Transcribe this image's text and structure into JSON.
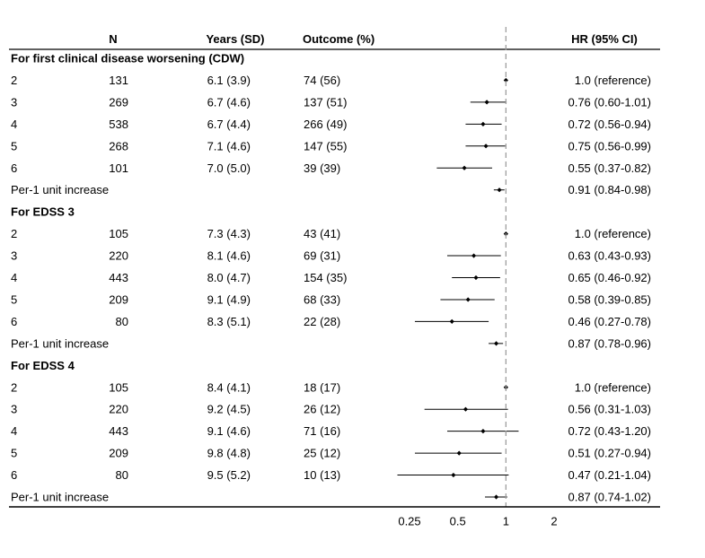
{
  "chart_data": {
    "type": "forest",
    "columns": {
      "group": "",
      "n": "N",
      "years": "Years (SD)",
      "outcome": "Outcome (%)",
      "hr": "HR (95% CI)"
    },
    "x_scale": "log",
    "xlim": [
      0.25,
      2
    ],
    "reference_line": 1,
    "x_ticks": [
      {
        "value": 0.25,
        "label": "0.25"
      },
      {
        "value": 0.5,
        "label": "0.5"
      },
      {
        "value": 1,
        "label": "1"
      },
      {
        "value": 2,
        "label": "2"
      }
    ],
    "sections": [
      {
        "title": "For first clinical disease worsening (CDW)",
        "rows": [
          {
            "label": "2",
            "n": "131",
            "years": "6.1 (3.9)",
            "outcome": "74 (56)",
            "hr": 1.0,
            "lo": null,
            "hi": null,
            "hr_text": "1.0 (reference)"
          },
          {
            "label": "3",
            "n": "269",
            "years": "6.7 (4.6)",
            "outcome": "137 (51)",
            "hr": 0.76,
            "lo": 0.6,
            "hi": 1.01,
            "hr_text": "0.76 (0.60-1.01)"
          },
          {
            "label": "4",
            "n": "538",
            "years": "6.7 (4.4)",
            "outcome": "266 (49)",
            "hr": 0.72,
            "lo": 0.56,
            "hi": 0.94,
            "hr_text": "0.72 (0.56-0.94)"
          },
          {
            "label": "5",
            "n": "268",
            "years": "7.1 (4.6)",
            "outcome": "147 (55)",
            "hr": 0.75,
            "lo": 0.56,
            "hi": 0.99,
            "hr_text": "0.75 (0.56-0.99)"
          },
          {
            "label": "6",
            "n": "101",
            "years": "7.0 (5.0)",
            "outcome": "39 (39)",
            "hr": 0.55,
            "lo": 0.37,
            "hi": 0.82,
            "hr_text": "0.55 (0.37-0.82)"
          },
          {
            "label": "Per-1 unit increase",
            "n": "",
            "years": "",
            "outcome": "",
            "hr": 0.91,
            "lo": 0.84,
            "hi": 0.98,
            "hr_text": "0.91 (0.84-0.98)"
          }
        ]
      },
      {
        "title": "For EDSS 3",
        "rows": [
          {
            "label": "2",
            "n": "105",
            "years": "7.3 (4.3)",
            "outcome": "43 (41)",
            "hr": 1.0,
            "lo": null,
            "hi": null,
            "hr_text": "1.0 (reference)"
          },
          {
            "label": "3",
            "n": "220",
            "years": "8.1 (4.6)",
            "outcome": "69 (31)",
            "hr": 0.63,
            "lo": 0.43,
            "hi": 0.93,
            "hr_text": "0.63 (0.43-0.93)"
          },
          {
            "label": "4",
            "n": "443",
            "years": "8.0 (4.7)",
            "outcome": "154 (35)",
            "hr": 0.65,
            "lo": 0.46,
            "hi": 0.92,
            "hr_text": "0.65 (0.46-0.92)"
          },
          {
            "label": "5",
            "n": "209",
            "years": "9.1 (4.9)",
            "outcome": "68 (33)",
            "hr": 0.58,
            "lo": 0.39,
            "hi": 0.85,
            "hr_text": "0.58 (0.39-0.85)"
          },
          {
            "label": "6",
            "n": "80",
            "years": "8.3 (5.1)",
            "outcome": "22 (28)",
            "hr": 0.46,
            "lo": 0.27,
            "hi": 0.78,
            "hr_text": "0.46 (0.27-0.78)"
          },
          {
            "label": "Per-1 unit increase",
            "n": "",
            "years": "",
            "outcome": "",
            "hr": 0.87,
            "lo": 0.78,
            "hi": 0.96,
            "hr_text": "0.87 (0.78-0.96)"
          }
        ]
      },
      {
        "title": "For EDSS 4",
        "rows": [
          {
            "label": "2",
            "n": "105",
            "years": "8.4 (4.1)",
            "outcome": "18 (17)",
            "hr": 1.0,
            "lo": null,
            "hi": null,
            "hr_text": "1.0 (reference)"
          },
          {
            "label": "3",
            "n": "220",
            "years": "9.2 (4.5)",
            "outcome": "26 (12)",
            "hr": 0.56,
            "lo": 0.31,
            "hi": 1.03,
            "hr_text": "0.56 (0.31-1.03)"
          },
          {
            "label": "4",
            "n": "443",
            "years": "9.1 (4.6)",
            "outcome": "71 (16)",
            "hr": 0.72,
            "lo": 0.43,
            "hi": 1.2,
            "hr_text": "0.72 (0.43-1.20)"
          },
          {
            "label": "5",
            "n": "209",
            "years": "9.8 (4.8)",
            "outcome": "25 (12)",
            "hr": 0.51,
            "lo": 0.27,
            "hi": 0.94,
            "hr_text": "0.51 (0.27-0.94)"
          },
          {
            "label": "6",
            "n": "80",
            "years": "9.5 (5.2)",
            "outcome": "10 (13)",
            "hr": 0.47,
            "lo": 0.21,
            "hi": 1.04,
            "hr_text": "0.47 (0.21-1.04)"
          },
          {
            "label": "Per-1 unit increase",
            "n": "",
            "years": "",
            "outcome": "",
            "hr": 0.87,
            "lo": 0.74,
            "hi": 1.02,
            "hr_text": "0.87 (0.74-1.02)"
          }
        ]
      }
    ]
  }
}
